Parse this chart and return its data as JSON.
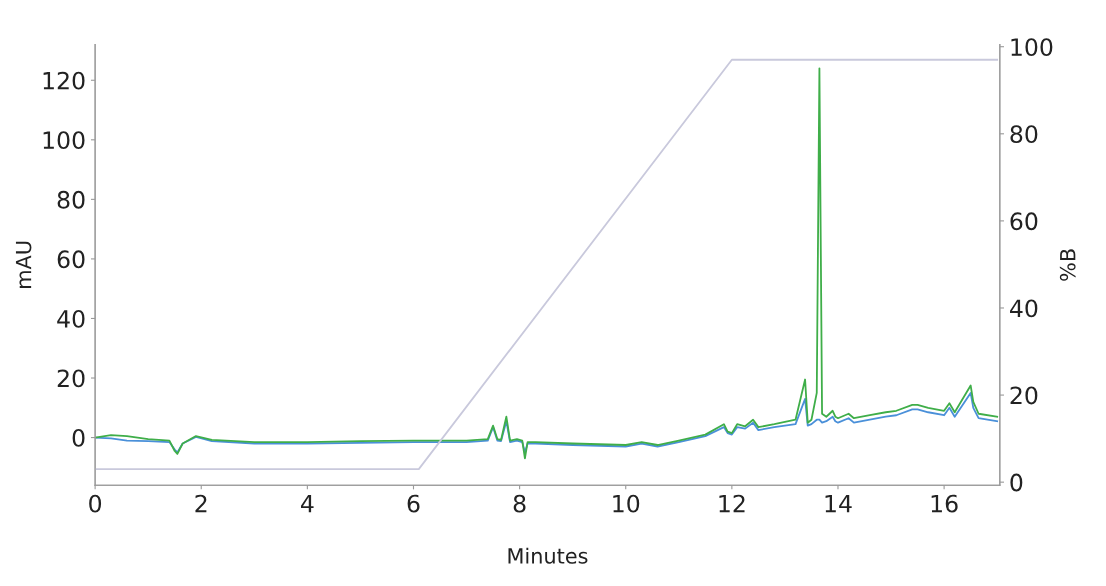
{
  "chart_data": {
    "type": "line",
    "xlabel": "Minutes",
    "ylabel": "mAU",
    "y2label": "%B",
    "xlim": [
      0,
      17.05
    ],
    "xticks": [
      0,
      2,
      4,
      6,
      8,
      10,
      12,
      14,
      16
    ],
    "ylim": [
      -16,
      132
    ],
    "yticks": [
      0,
      20,
      40,
      60,
      80,
      100,
      120
    ],
    "y2lim": [
      -0.7,
      100.5
    ],
    "y2ticks": [
      0,
      20,
      40,
      60,
      80,
      100
    ],
    "grid": false,
    "legend": false,
    "marker": "none",
    "line_style": "solid",
    "series": [
      {
        "color": "#c9c9dc",
        "axis": "y2",
        "x": [
          0,
          6.1,
          12,
          17
        ],
        "values": [
          3,
          3,
          97,
          97
        ]
      },
      {
        "color": "#4a90d9",
        "x": [
          0,
          0.3,
          0.6,
          1.0,
          1.4,
          1.5,
          1.55,
          1.65,
          1.9,
          2.2,
          3,
          4,
          5,
          6,
          7,
          7.4,
          7.5,
          7.58,
          7.65,
          7.75,
          7.82,
          7.95,
          8.05,
          8.1,
          8.15,
          8.3,
          9,
          10,
          10.3,
          10.6,
          11,
          11.5,
          11.85,
          11.92,
          12.0,
          12.1,
          12.25,
          12.4,
          12.5,
          12.8,
          13.2,
          13.38,
          13.43,
          13.5,
          13.6,
          13.65,
          13.7,
          13.78,
          13.9,
          13.95,
          14.0,
          14.2,
          14.3,
          14.6,
          14.9,
          15.1,
          15.4,
          15.5,
          15.7,
          16.0,
          16.1,
          16.2,
          16.5,
          16.55,
          16.65,
          17.0
        ],
        "values": [
          0,
          -0.3,
          -1,
          -1.2,
          -1.5,
          -4,
          -5,
          -2,
          0.2,
          -1.2,
          -2,
          -2,
          -1.8,
          -1.5,
          -1.5,
          -1,
          3.5,
          -1,
          -1.2,
          5.5,
          -1.5,
          -1,
          -1.5,
          -5,
          -2,
          -2,
          -2.5,
          -3,
          -2,
          -3,
          -1.5,
          0.5,
          3.5,
          1.5,
          1,
          3.5,
          3,
          5,
          2.5,
          3.5,
          4.5,
          13,
          4,
          4.5,
          6,
          6,
          5,
          5.5,
          7,
          5.5,
          5,
          6.5,
          5,
          6,
          7,
          7.5,
          9.5,
          9.5,
          8.5,
          7.5,
          10,
          7,
          15,
          10,
          6.5,
          5.5
        ]
      },
      {
        "color": "#3fae49",
        "x": [
          0,
          0.3,
          0.6,
          1.0,
          1.4,
          1.5,
          1.55,
          1.65,
          1.9,
          2.2,
          3,
          4,
          5,
          6,
          7,
          7.4,
          7.5,
          7.58,
          7.65,
          7.75,
          7.82,
          7.95,
          8.05,
          8.1,
          8.15,
          8.3,
          9,
          10,
          10.3,
          10.6,
          11,
          11.5,
          11.85,
          11.92,
          12.0,
          12.1,
          12.25,
          12.4,
          12.5,
          12.8,
          13.2,
          13.38,
          13.43,
          13.5,
          13.6,
          13.65,
          13.7,
          13.78,
          13.9,
          13.95,
          14.0,
          14.2,
          14.3,
          14.6,
          14.9,
          15.1,
          15.4,
          15.5,
          15.7,
          16.0,
          16.1,
          16.2,
          16.5,
          16.55,
          16.65,
          17.0
        ],
        "values": [
          0,
          0.8,
          0.5,
          -0.5,
          -1,
          -4.5,
          -5.5,
          -2,
          0.5,
          -0.8,
          -1.5,
          -1.5,
          -1.2,
          -1,
          -1,
          -0.5,
          4,
          -0.5,
          -0.8,
          7,
          -1,
          -0.5,
          -1,
          -7,
          -1.5,
          -1.5,
          -2,
          -2.5,
          -1.5,
          -2.5,
          -1,
          1,
          4.5,
          2,
          1.5,
          4.5,
          3.8,
          6,
          3.5,
          4.5,
          6,
          19.5,
          5,
          6,
          15,
          124,
          8,
          7,
          9,
          7,
          6.5,
          8,
          6.5,
          7.5,
          8.5,
          9,
          11,
          11,
          10,
          9,
          11.5,
          8.5,
          17.5,
          12,
          8,
          7
        ]
      }
    ]
  }
}
